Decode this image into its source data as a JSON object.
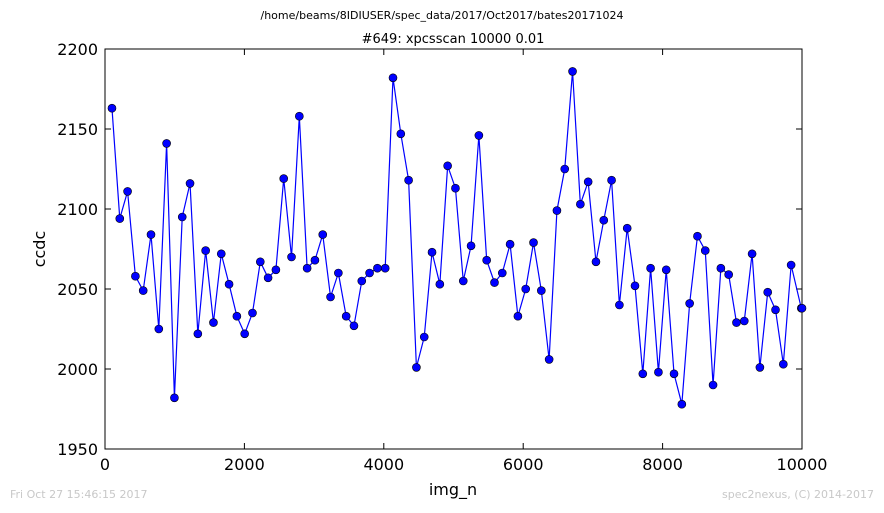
{
  "suptitle": "/home/beams/8IDIUSER/spec_data/2017/Oct2017/bates20171024",
  "footer_left": "Fri Oct 27 15:46:15 2017",
  "footer_right": "spec2nexus, (C) 2014-2017",
  "colors": {
    "series": "#0000ff",
    "axes": "#000000",
    "background": "#ffffff",
    "footer": "#c8c8c8"
  },
  "chart_data": {
    "type": "line",
    "title": "#649: xpcsscan 10000 0.01",
    "xlabel": "img_n",
    "ylabel": "ccdc",
    "xlim": [
      0,
      10000
    ],
    "ylim": [
      1950,
      2200
    ],
    "xticks": [
      0,
      2000,
      4000,
      6000,
      8000,
      10000
    ],
    "yticks": [
      1950,
      2000,
      2050,
      2100,
      2150,
      2200
    ],
    "grid": false,
    "legend": "none",
    "series": [
      {
        "markers": "circle",
        "x": [
          100,
          212,
          324,
          436,
          548,
          660,
          772,
          884,
          996,
          1108,
          1220,
          1332,
          1444,
          1556,
          1668,
          1780,
          1892,
          2004,
          2116,
          2228,
          2340,
          2452,
          2564,
          2676,
          2788,
          2900,
          3012,
          3124,
          3236,
          3348,
          3460,
          3572,
          3684,
          3796,
          3908,
          4020,
          4132,
          4244,
          4356,
          4468,
          4580,
          4692,
          4804,
          4916,
          5028,
          5140,
          5252,
          5364,
          5476,
          5588,
          5700,
          5812,
          5924,
          6036,
          6148,
          6260,
          6372,
          6484,
          6596,
          6708,
          6820,
          6932,
          7044,
          7156,
          7268,
          7380,
          7492,
          7604,
          7716,
          7828,
          7940,
          8052,
          8164,
          8276,
          8388,
          8500,
          8612,
          8724,
          8836,
          8948,
          9060,
          9172,
          9284,
          9396,
          9508,
          9620,
          9732,
          9844,
          9990,
          10000
        ],
        "y": [
          2163,
          2094,
          2111,
          2058,
          2049,
          2084,
          2025,
          2141,
          1982,
          2095,
          2116,
          2022,
          2074,
          2029,
          2072,
          2053,
          2033,
          2022,
          2035,
          2067,
          2057,
          2062,
          2119,
          2070,
          2158,
          2063,
          2068,
          2084,
          2045,
          2060,
          2033,
          2027,
          2055,
          2060,
          2063,
          2063,
          2182,
          2147,
          2118,
          2001,
          2020,
          2073,
          2053,
          2127,
          2113,
          2055,
          2077,
          2146,
          2068,
          2054,
          2060,
          2078,
          2033,
          2050,
          2079,
          2049,
          2006,
          2099,
          2125,
          2186,
          2103,
          2117,
          2067,
          2093,
          2118,
          2040,
          2088,
          2052,
          1997,
          2063,
          1998,
          2062,
          1997,
          1978,
          2041,
          2083,
          2074,
          1990,
          2063,
          2059,
          2029,
          2030,
          2072,
          2001,
          2048,
          2037,
          2003,
          2065,
          2038,
          2038
        ]
      }
    ]
  }
}
